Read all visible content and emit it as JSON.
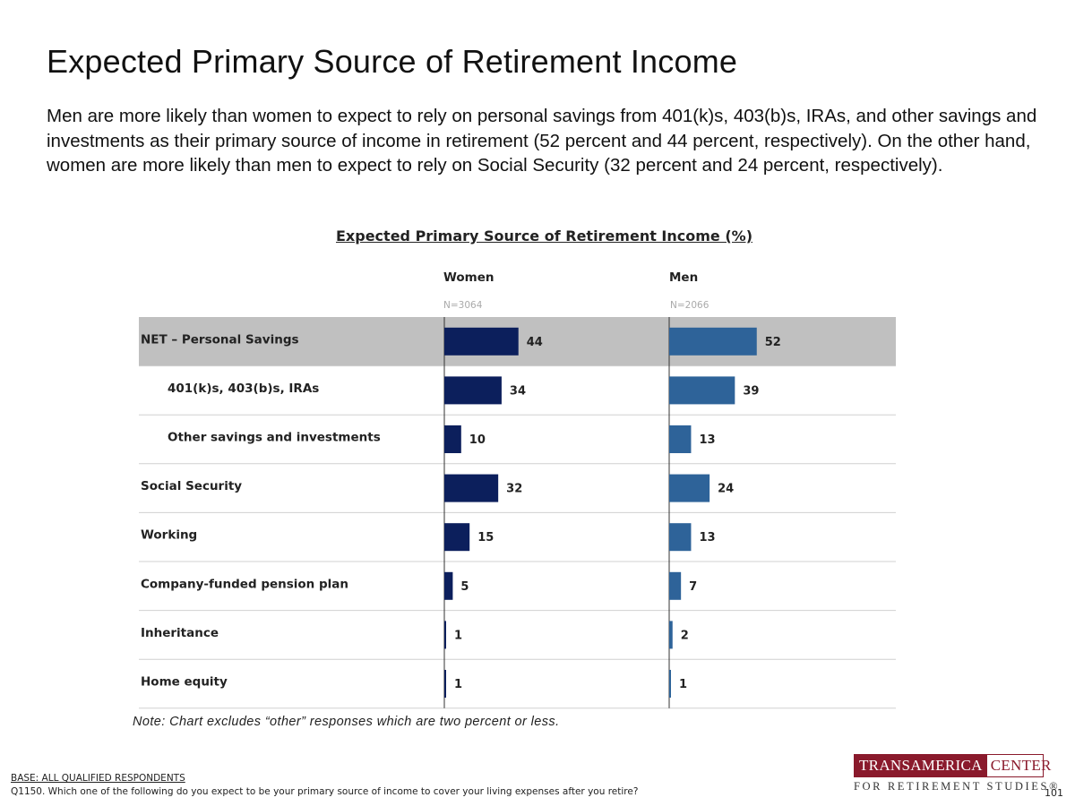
{
  "page": {
    "title": "Expected Primary Source of Retirement Income",
    "summary": "Men are more likely than women to expect to rely on personal savings from 401(k)s, 403(b)s, IRAs, and other savings and investments as their primary source of income in retirement (52 percent and 44 percent, respectively). On the other hand, women are more likely than men to expect to rely on Social Security (32 percent and 24 percent, respectively).",
    "note": "Note: Chart excludes “other” responses which are two percent or less.",
    "base": "BASE: ALL QUALIFIED RESPONDENTS",
    "question": "Q1150. Which one of the following do you expect to be your primary source of income to cover your living expenses after you retire?",
    "page_number": "101"
  },
  "logo": {
    "left_text": "TRANSAMERICA",
    "right_text": "CENTER",
    "subtitle": "FOR RETIREMENT STUDIES®"
  },
  "chart_data": {
    "type": "bar",
    "orientation": "horizontal",
    "title": "Expected Primary Source of Retirement Income (%)",
    "categories": [
      "NET – Personal Savings",
      "401(k)s, 403(b)s, IRAs",
      "Other savings and investments",
      "Social Security",
      "Working",
      "Company-funded pension plan",
      "Inheritance",
      "Home equity"
    ],
    "indented": [
      false,
      true,
      true,
      false,
      false,
      false,
      false,
      false
    ],
    "highlighted": [
      true,
      false,
      false,
      false,
      false,
      false,
      false,
      false
    ],
    "series": [
      {
        "name": "Women",
        "n_label": "N=3064",
        "color": "#0c1f5c",
        "values": [
          44,
          34,
          10,
          32,
          15,
          5,
          1,
          1
        ]
      },
      {
        "name": "Men",
        "n_label": "N=2066",
        "color": "#2e6399",
        "values": [
          52,
          39,
          13,
          24,
          13,
          7,
          2,
          1
        ]
      }
    ],
    "xlim": [
      0,
      100
    ],
    "highlight_color": "#c0c0c0",
    "separator_color": "#d0d0d0"
  }
}
